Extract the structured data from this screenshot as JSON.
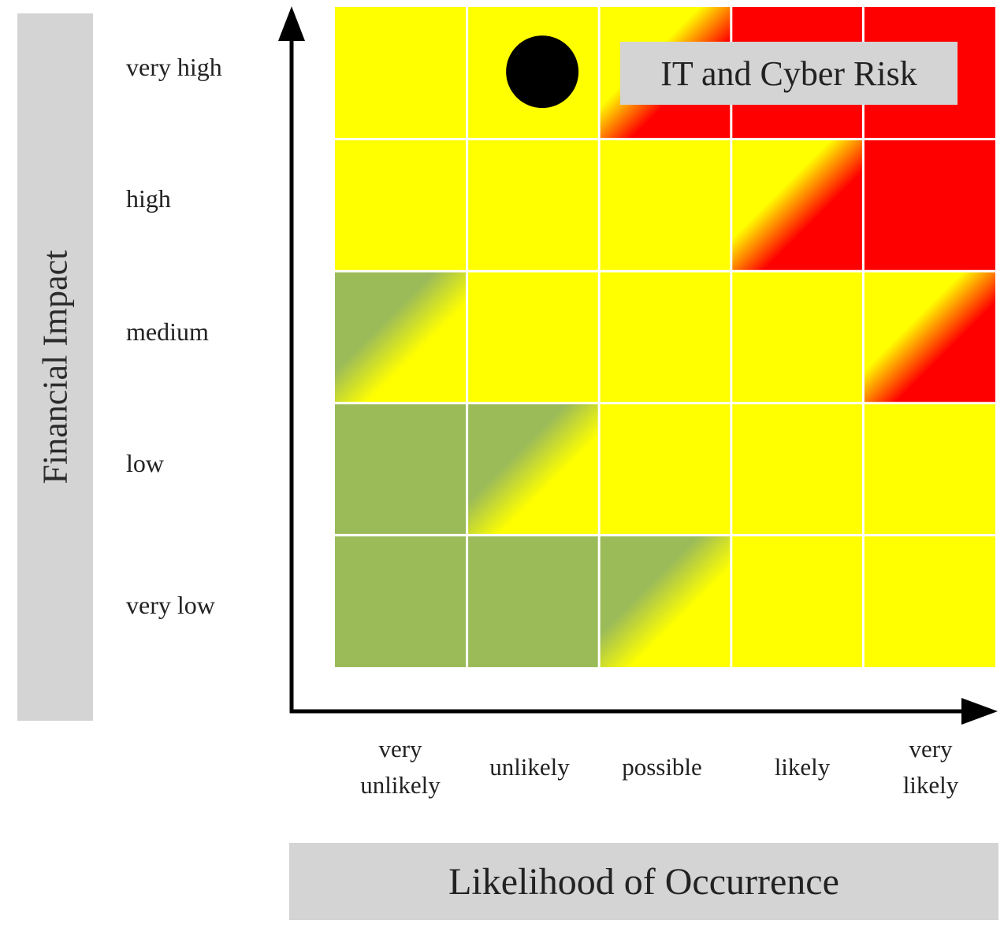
{
  "chart_data": {
    "type": "heatmap",
    "title": "IT and Cyber Risk",
    "xlabel": "Likelihood of Occurrence",
    "ylabel": "Financial Impact",
    "x_categories": [
      "very unlikely",
      "unlikely",
      "possible",
      "likely",
      "very likely"
    ],
    "x_tick_lines": [
      [
        "very",
        "unlikely"
      ],
      [
        "unlikely"
      ],
      [
        "possible"
      ],
      [
        "likely"
      ],
      [
        "very",
        "likely"
      ]
    ],
    "y_categories": [
      "very low",
      "low",
      "medium",
      "high",
      "very high"
    ],
    "cells": [
      [
        "yellow",
        "yellow",
        "yellow-red",
        "red",
        "red"
      ],
      [
        "yellow",
        "yellow",
        "yellow",
        "yellow-red",
        "red"
      ],
      [
        "green-yellow",
        "yellow",
        "yellow",
        "yellow",
        "yellow-red"
      ],
      [
        "green",
        "green-yellow",
        "yellow",
        "yellow",
        "yellow"
      ],
      [
        "green",
        "green",
        "green-yellow",
        "yellow",
        "yellow"
      ]
    ],
    "cells_row_order": "top-to-bottom (very high to very low)",
    "marker": {
      "likelihood": "unlikely",
      "impact": "very high",
      "shape": "circle",
      "color": "#000000"
    },
    "colors": {
      "green": "#9bbb59",
      "yellow": "#ffff00",
      "red": "#ff0000",
      "gridline": "#ffffff",
      "axis": "#000000"
    },
    "grid": true
  }
}
